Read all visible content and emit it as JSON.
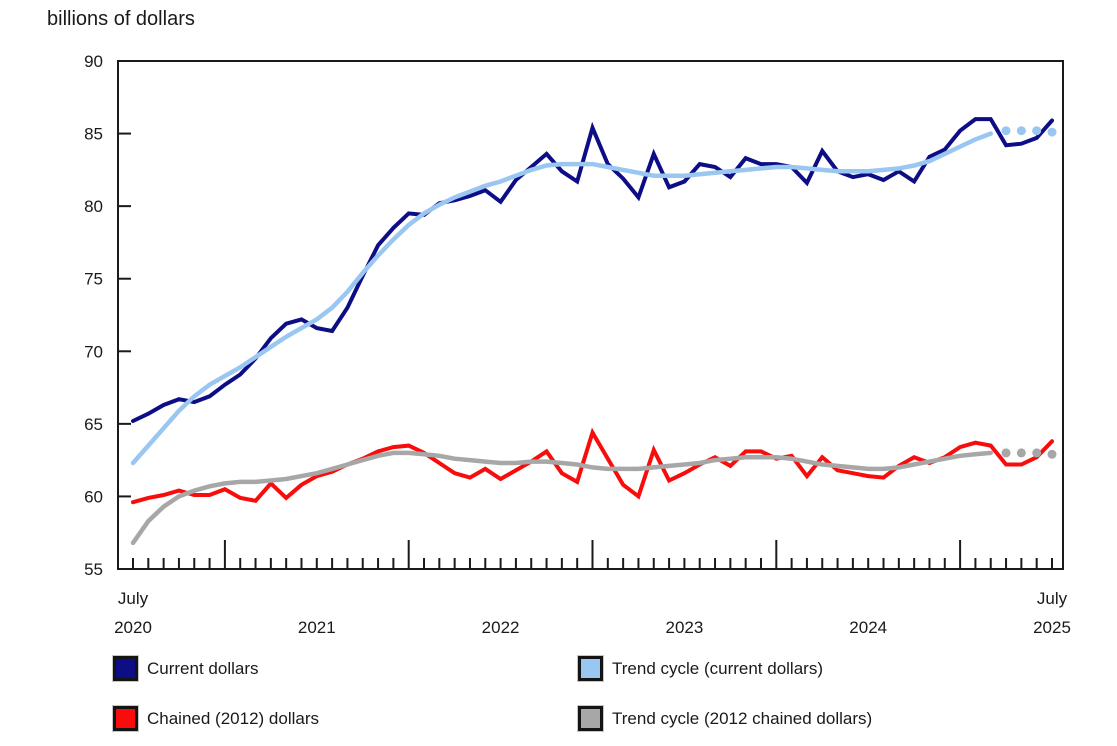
{
  "title": "billions of dollars",
  "colors": {
    "current": "#0d0d86",
    "trend_current": "#9ac6f2",
    "chained": "#f90c0c",
    "trend_chained": "#a7a7a7",
    "axis": "#1a1a1a",
    "text": "#1a1a1a"
  },
  "legend": [
    {
      "label": "Current dollars",
      "color_key": "current"
    },
    {
      "label": "Trend cycle (current dollars)",
      "color_key": "trend_current"
    },
    {
      "label": "Chained (2012) dollars",
      "color_key": "chained"
    },
    {
      "label": "Trend cycle (2012 chained dollars)",
      "color_key": "trend_chained"
    }
  ],
  "chart_data": {
    "type": "line",
    "title": "billions of dollars",
    "ylabel": "billions of dollars",
    "ylim": [
      55,
      90
    ],
    "yticks": [
      55,
      60,
      65,
      70,
      75,
      80,
      85,
      90
    ],
    "grid": false,
    "legend_position": "bottom",
    "x_start": "2020-07",
    "x_end": "2025-07",
    "x_axis": {
      "start_label": {
        "month": "July",
        "year": "2020"
      },
      "year_labels": [
        "2021",
        "2022",
        "2023",
        "2024"
      ],
      "end_label": {
        "month": "July",
        "year": "2025"
      }
    },
    "series": [
      {
        "name": "Current dollars",
        "color_key": "current",
        "style": "solid",
        "dotted_tail": 0,
        "values": [
          65.2,
          65.7,
          66.3,
          66.7,
          66.5,
          66.9,
          67.7,
          68.4,
          69.5,
          70.9,
          71.9,
          72.2,
          71.6,
          71.4,
          73.0,
          75.2,
          77.3,
          78.5,
          79.5,
          79.4,
          80.2,
          80.4,
          80.7,
          81.1,
          80.3,
          81.8,
          82.7,
          83.6,
          82.4,
          81.7,
          85.4,
          82.9,
          81.9,
          80.6,
          83.6,
          81.3,
          81.7,
          82.9,
          82.7,
          82.0,
          83.3,
          82.9,
          82.9,
          82.7,
          81.6,
          83.8,
          82.4,
          82.0,
          82.2,
          81.8,
          82.4,
          81.7,
          83.4,
          83.9,
          85.2,
          86.0,
          86.0,
          84.2,
          84.3,
          84.7,
          85.9
        ]
      },
      {
        "name": "Trend cycle (current dollars)",
        "color_key": "trend_current",
        "style": "solid_then_dots",
        "dotted_tail": 4,
        "values": [
          62.3,
          63.5,
          64.7,
          65.9,
          66.9,
          67.7,
          68.3,
          68.9,
          69.6,
          70.3,
          71.0,
          71.6,
          72.2,
          73.0,
          74.1,
          75.4,
          76.6,
          77.7,
          78.7,
          79.5,
          80.1,
          80.6,
          81.0,
          81.4,
          81.7,
          82.1,
          82.5,
          82.8,
          82.9,
          82.9,
          82.9,
          82.7,
          82.5,
          82.3,
          82.1,
          82.1,
          82.1,
          82.2,
          82.3,
          82.4,
          82.5,
          82.6,
          82.7,
          82.7,
          82.6,
          82.5,
          82.4,
          82.4,
          82.4,
          82.5,
          82.6,
          82.8,
          83.1,
          83.6,
          84.1,
          84.6,
          85.0,
          85.2,
          85.2,
          85.2,
          85.1
        ]
      },
      {
        "name": "Chained (2012) dollars",
        "color_key": "chained",
        "style": "solid",
        "dotted_tail": 0,
        "values": [
          59.6,
          59.9,
          60.1,
          60.4,
          60.1,
          60.1,
          60.5,
          59.9,
          59.7,
          60.9,
          59.9,
          60.8,
          61.4,
          61.7,
          62.2,
          62.6,
          63.1,
          63.4,
          63.5,
          63.0,
          62.3,
          61.6,
          61.3,
          61.9,
          61.2,
          61.8,
          62.4,
          63.1,
          61.6,
          61.0,
          64.4,
          62.6,
          60.8,
          60.0,
          63.2,
          61.1,
          61.6,
          62.2,
          62.7,
          62.1,
          63.1,
          63.1,
          62.6,
          62.8,
          61.4,
          62.7,
          61.8,
          61.6,
          61.4,
          61.3,
          62.1,
          62.7,
          62.3,
          62.7,
          63.4,
          63.7,
          63.5,
          62.2,
          62.2,
          62.7,
          63.8
        ]
      },
      {
        "name": "Trend cycle (2012 chained dollars)",
        "color_key": "trend_chained",
        "style": "solid_then_dots",
        "dotted_tail": 4,
        "values": [
          56.8,
          58.3,
          59.3,
          60.0,
          60.4,
          60.7,
          60.9,
          61.0,
          61.0,
          61.1,
          61.2,
          61.4,
          61.6,
          61.9,
          62.2,
          62.5,
          62.8,
          63.0,
          63.0,
          62.9,
          62.8,
          62.6,
          62.5,
          62.4,
          62.3,
          62.3,
          62.4,
          62.4,
          62.3,
          62.2,
          62.0,
          61.9,
          61.9,
          61.9,
          62.0,
          62.1,
          62.2,
          62.3,
          62.5,
          62.6,
          62.7,
          62.7,
          62.7,
          62.6,
          62.4,
          62.2,
          62.1,
          62.0,
          61.9,
          61.9,
          62.0,
          62.2,
          62.4,
          62.6,
          62.8,
          62.9,
          63.0,
          63.0,
          63.0,
          63.0,
          62.9
        ]
      }
    ]
  }
}
